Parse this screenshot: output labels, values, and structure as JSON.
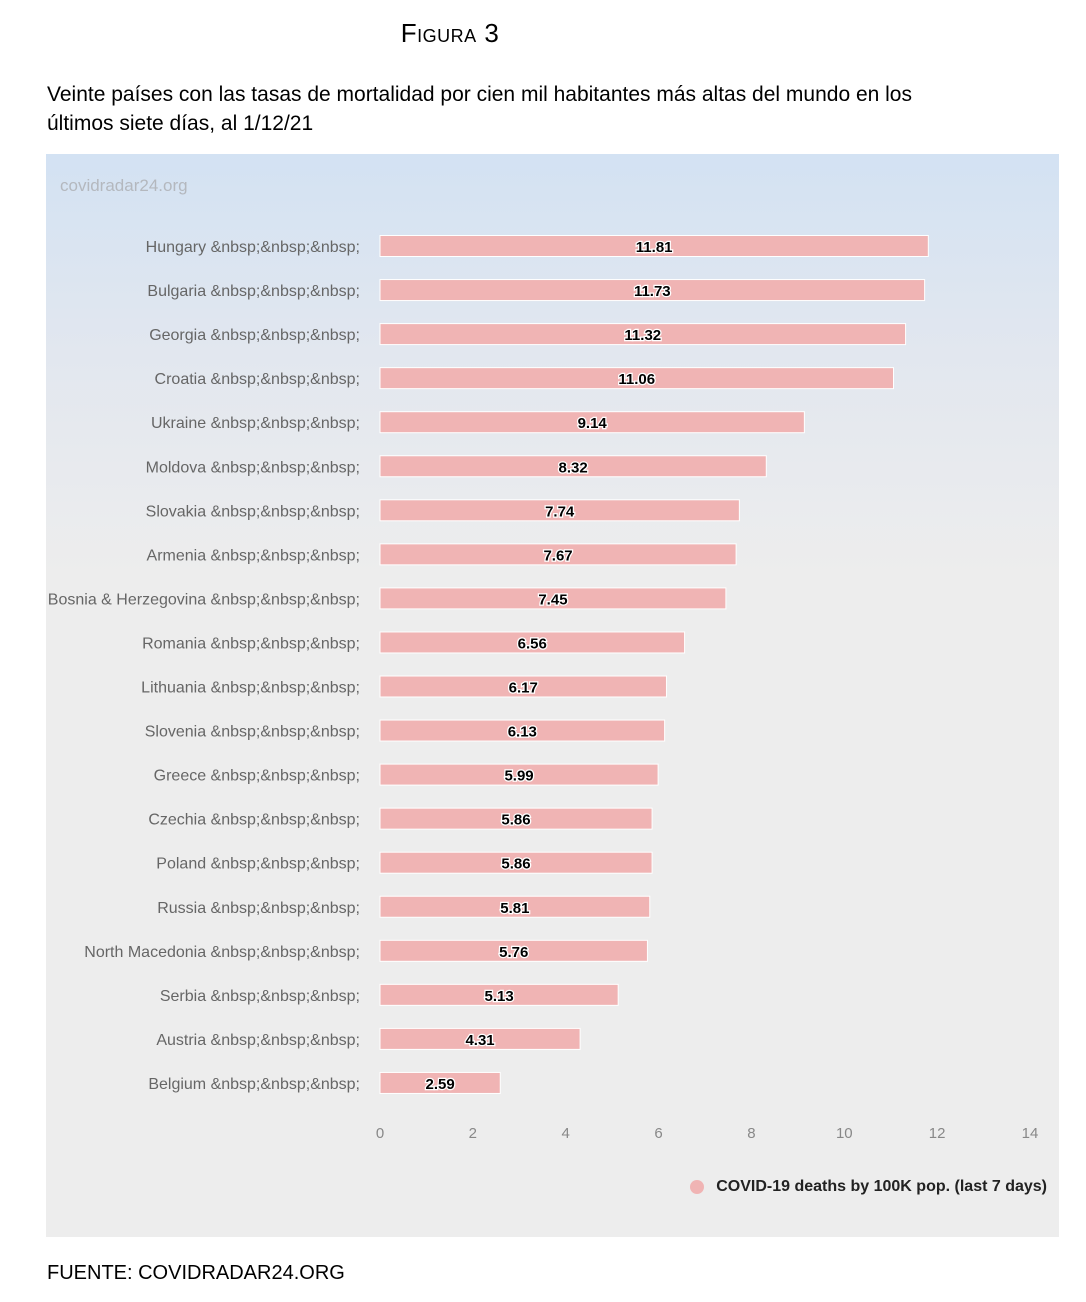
{
  "figure_label": "Figura 3",
  "figure_title": "Veinte países con las tasas de mortalidad por cien mil habitantes más altas del mundo en los últimos siete días, al 1/12/21",
  "watermark": "covidradar24.org",
  "source": "FUENTE: COVIDRADAR24.ORG",
  "colors": {
    "bar_fill": "#f0b4b4",
    "bar_stroke": "#ffffff",
    "label_text": "#000000",
    "category_text": "#666666"
  },
  "chart_data": {
    "type": "bar",
    "orientation": "horizontal",
    "categories": [
      "Hungary &nbsp;&nbsp;&nbsp;",
      "Bulgaria &nbsp;&nbsp;&nbsp;",
      "Georgia &nbsp;&nbsp;&nbsp;",
      "Croatia &nbsp;&nbsp;&nbsp;",
      "Ukraine &nbsp;&nbsp;&nbsp;",
      "Moldova &nbsp;&nbsp;&nbsp;",
      "Slovakia &nbsp;&nbsp;&nbsp;",
      "Armenia &nbsp;&nbsp;&nbsp;",
      "Bosnia & Herzegovina &nbsp;&nbsp;&nbsp;",
      "Romania &nbsp;&nbsp;&nbsp;",
      "Lithuania &nbsp;&nbsp;&nbsp;",
      "Slovenia &nbsp;&nbsp;&nbsp;",
      "Greece &nbsp;&nbsp;&nbsp;",
      "Czechia &nbsp;&nbsp;&nbsp;",
      "Poland &nbsp;&nbsp;&nbsp;",
      "Russia &nbsp;&nbsp;&nbsp;",
      "North Macedonia &nbsp;&nbsp;&nbsp;",
      "Serbia &nbsp;&nbsp;&nbsp;",
      "Austria &nbsp;&nbsp;&nbsp;",
      "Belgium &nbsp;&nbsp;&nbsp;"
    ],
    "series": [
      {
        "name": "COVID-19 deaths by 100K pop. (last 7 days)",
        "values": [
          11.81,
          11.73,
          11.32,
          11.06,
          9.14,
          8.32,
          7.74,
          7.67,
          7.45,
          6.56,
          6.17,
          6.13,
          5.99,
          5.86,
          5.86,
          5.81,
          5.76,
          5.13,
          4.31,
          2.59
        ]
      }
    ],
    "data_labels": [
      "11.81",
      "11.73",
      "11.32",
      "11.06",
      "9.14",
      "8.32",
      "7.74",
      "7.67",
      "7.45",
      "6.56",
      "6.17",
      "6.13",
      "5.99",
      "5.86",
      "5.86",
      "5.81",
      "5.76",
      "5.13",
      "4.31",
      "2.59"
    ],
    "xlim": [
      0,
      14
    ],
    "xticks": [
      0,
      2,
      4,
      6,
      8,
      10,
      12,
      14
    ],
    "xtick_labels": [
      "0",
      "2",
      "4",
      "6",
      "8",
      "10",
      "12",
      "14"
    ],
    "grid": false,
    "legend": "bottom-right"
  }
}
